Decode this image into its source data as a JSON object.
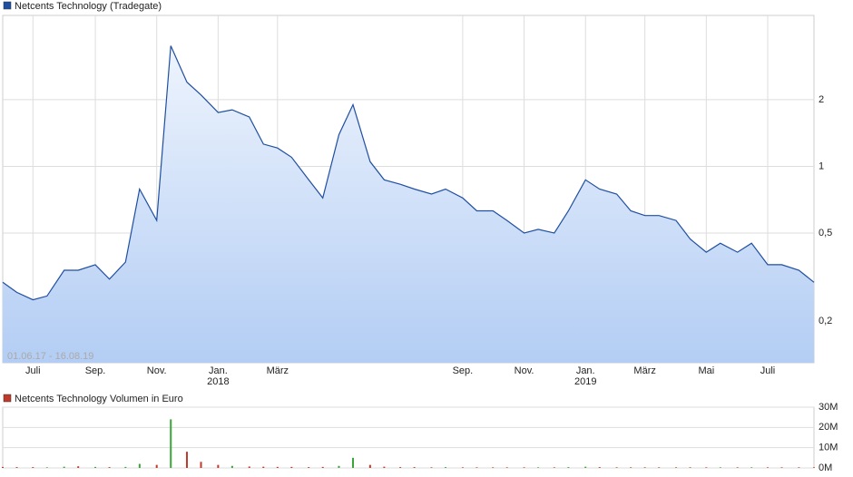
{
  "chart_data": [
    {
      "type": "area",
      "log_scale": true,
      "grid": true,
      "annotation": "01.06.17 - 16.08.19",
      "xlim": [
        "2017-06-01",
        "2019-08-16"
      ],
      "x": [
        "2017-06-01",
        "2017-06-15",
        "2017-07-01",
        "2017-07-15",
        "2017-08-01",
        "2017-08-15",
        "2017-09-01",
        "2017-09-15",
        "2017-10-01",
        "2017-10-15",
        "2017-11-01",
        "2017-11-15",
        "2017-12-01",
        "2017-12-15",
        "2018-01-01",
        "2018-01-15",
        "2018-02-01",
        "2018-02-15",
        "2018-03-01",
        "2018-03-15",
        "2018-04-01",
        "2018-04-15",
        "2018-05-01",
        "2018-05-15",
        "2018-06-01",
        "2018-06-15",
        "2018-07-01",
        "2018-07-15",
        "2018-08-01",
        "2018-08-15",
        "2018-09-01",
        "2018-09-15",
        "2018-10-01",
        "2018-10-15",
        "2018-11-01",
        "2018-11-15",
        "2018-12-01",
        "2018-12-15",
        "2019-01-01",
        "2019-01-15",
        "2019-02-01",
        "2019-02-15",
        "2019-03-01",
        "2019-03-15",
        "2019-04-01",
        "2019-04-15",
        "2019-05-01",
        "2019-05-15",
        "2019-06-01",
        "2019-06-15",
        "2019-07-01",
        "2019-07-15",
        "2019-08-01",
        "2019-08-16"
      ],
      "series": [
        {
          "name": "Netcents Technology (Tradegate)",
          "color": "#1f4fa0",
          "values": [
            0.3,
            0.27,
            0.25,
            0.26,
            0.34,
            0.34,
            0.36,
            0.31,
            0.37,
            0.79,
            0.57,
            3.5,
            2.4,
            2.1,
            1.75,
            1.8,
            1.67,
            1.26,
            1.21,
            1.1,
            0.87,
            0.72,
            1.39,
            1.9,
            1.05,
            0.87,
            0.83,
            0.79,
            0.75,
            0.79,
            0.72,
            0.63,
            0.63,
            0.57,
            0.5,
            0.52,
            0.5,
            0.63,
            0.87,
            0.79,
            0.75,
            0.63,
            0.6,
            0.6,
            0.57,
            0.47,
            0.41,
            0.45,
            0.41,
            0.45,
            0.36,
            0.36,
            0.34,
            0.3
          ]
        }
      ],
      "ylim": [
        0.13,
        4.8
      ],
      "yticks": [
        {
          "value": 0.2,
          "label": "0,2"
        },
        {
          "value": 0.5,
          "label": "0,5"
        },
        1,
        2
      ],
      "xticks": [
        {
          "value": "2017-07-01",
          "label": "Juli"
        },
        {
          "value": "2017-09-01",
          "label": "Sep."
        },
        {
          "value": "2017-11-01",
          "label": "Nov."
        },
        {
          "value": "2018-01-01",
          "label": "Jan."
        },
        {
          "value": "2018-03-01",
          "label": "März"
        },
        {
          "value": "2018-09-01",
          "label": "Sep."
        },
        {
          "value": "2018-11-01",
          "label": "Nov."
        },
        {
          "value": "2019-01-01",
          "label": "Jan."
        },
        {
          "value": "2019-03-01",
          "label": "März"
        },
        {
          "value": "2019-05-01",
          "label": "Mai"
        },
        {
          "value": "2019-07-01",
          "label": "Juli"
        }
      ],
      "year_labels": [
        {
          "value": "2018-01-01",
          "label": "2018"
        },
        {
          "value": "2019-01-01",
          "label": "2019"
        }
      ]
    },
    {
      "type": "bar",
      "grid": true,
      "xlim": [
        "2017-06-01",
        "2019-08-16"
      ],
      "x": [
        "2017-06-01",
        "2017-06-15",
        "2017-07-01",
        "2017-07-15",
        "2017-08-01",
        "2017-08-15",
        "2017-09-01",
        "2017-09-15",
        "2017-10-01",
        "2017-10-15",
        "2017-11-01",
        "2017-11-15",
        "2017-12-01",
        "2017-12-15",
        "2018-01-01",
        "2018-01-15",
        "2018-02-01",
        "2018-02-15",
        "2018-03-01",
        "2018-03-15",
        "2018-04-01",
        "2018-04-15",
        "2018-05-01",
        "2018-05-15",
        "2018-06-01",
        "2018-06-15",
        "2018-07-01",
        "2018-07-15",
        "2018-08-01",
        "2018-08-15",
        "2018-09-01",
        "2018-09-15",
        "2018-10-01",
        "2018-10-15",
        "2018-11-01",
        "2018-11-15",
        "2018-12-01",
        "2018-12-15",
        "2019-01-01",
        "2019-01-15",
        "2019-02-01",
        "2019-02-15",
        "2019-03-01",
        "2019-03-15",
        "2019-04-01",
        "2019-04-15",
        "2019-05-01",
        "2019-05-15",
        "2019-06-01",
        "2019-06-15",
        "2019-07-01",
        "2019-07-15",
        "2019-08-01",
        "2019-08-16"
      ],
      "series": [
        {
          "name": "Netcents Technology Volumen in Euro",
          "color": "#c0392b",
          "up_color": "#3aa53a",
          "values": [
            500000,
            400000,
            400000,
            300000,
            600000,
            800000,
            500000,
            400000,
            500000,
            2000000,
            1500000,
            24000000,
            8000000,
            3000000,
            1500000,
            1000000,
            700000,
            600000,
            500000,
            500000,
            400000,
            500000,
            1000000,
            5000000,
            1500000,
            600000,
            400000,
            400000,
            300000,
            400000,
            300000,
            300000,
            300000,
            300000,
            300000,
            300000,
            300000,
            400000,
            600000,
            400000,
            300000,
            300000,
            300000,
            300000,
            300000,
            300000,
            300000,
            300000,
            300000,
            300000,
            300000,
            300000,
            300000,
            300000
          ]
        }
      ],
      "ylim": [
        0,
        30000000
      ],
      "yticks": [
        {
          "value": 0,
          "label": "0M"
        },
        {
          "value": 10000000,
          "label": "10M"
        },
        {
          "value": 20000000,
          "label": "20M"
        },
        {
          "value": 30000000,
          "label": "30M"
        }
      ]
    }
  ]
}
